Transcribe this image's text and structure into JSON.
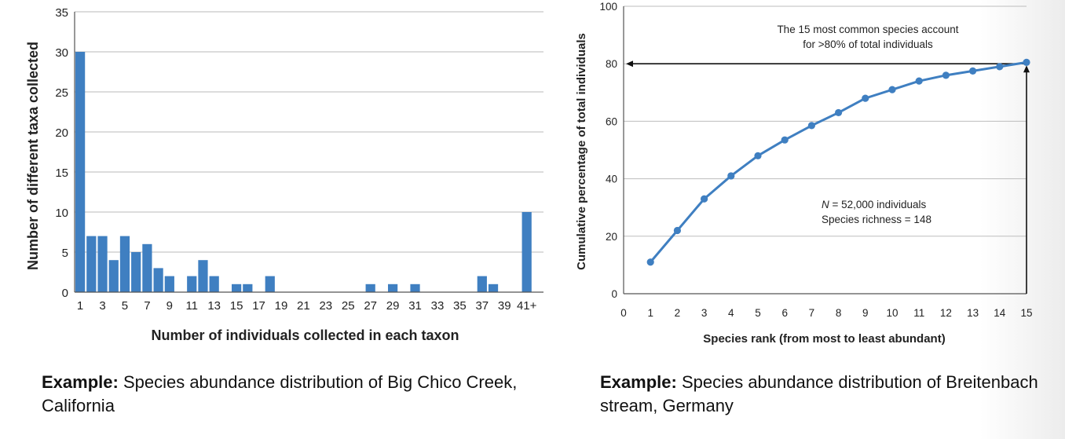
{
  "chart_data": [
    {
      "type": "bar",
      "title": "",
      "xlabel": "Number of individuals collected in each taxon",
      "ylabel": "Number of different taxa collected",
      "ylim": [
        0,
        35
      ],
      "yticks": [
        0,
        5,
        10,
        15,
        20,
        25,
        30,
        35
      ],
      "categories": [
        "1",
        "2",
        "3",
        "4",
        "5",
        "6",
        "7",
        "8",
        "9",
        "10",
        "11",
        "12",
        "13",
        "14",
        "15",
        "16",
        "17",
        "18",
        "19",
        "20",
        "21",
        "22",
        "23",
        "24",
        "25",
        "26",
        "27",
        "28",
        "29",
        "30",
        "31",
        "32",
        "33",
        "34",
        "35",
        "36",
        "37",
        "38",
        "39",
        "40",
        "41+"
      ],
      "x_tick_labels": [
        "1",
        "3",
        "5",
        "7",
        "9",
        "11",
        "13",
        "15",
        "17",
        "19",
        "21",
        "23",
        "25",
        "27",
        "29",
        "31",
        "33",
        "35",
        "37",
        "39",
        "41+"
      ],
      "values": [
        30,
        7,
        7,
        4,
        7,
        5,
        6,
        3,
        2,
        0,
        2,
        4,
        2,
        0,
        1,
        1,
        0,
        2,
        0,
        0,
        0,
        0,
        0,
        0,
        0,
        0,
        1,
        0,
        1,
        0,
        1,
        0,
        0,
        0,
        0,
        0,
        2,
        1,
        0,
        0,
        10
      ],
      "color": "#3f7fc1"
    },
    {
      "type": "line",
      "title": "",
      "xlabel": "Species rank (from most to least abundant)",
      "ylabel": "Cumulative percentage of total individuals",
      "xlim": [
        0,
        15
      ],
      "ylim": [
        0,
        100
      ],
      "xticks": [
        "0",
        "1",
        "2",
        "3",
        "4",
        "5",
        "6",
        "7",
        "8",
        "9",
        "10",
        "11",
        "12",
        "13",
        "14",
        "15"
      ],
      "yticks": [
        "0",
        "20",
        "40",
        "60",
        "80",
        "100"
      ],
      "x": [
        1,
        2,
        3,
        4,
        5,
        6,
        7,
        8,
        9,
        10,
        11,
        12,
        13,
        14,
        15
      ],
      "values": [
        11,
        22,
        33,
        41,
        48,
        53.5,
        58.5,
        63,
        68,
        71,
        74,
        76,
        77.5,
        79,
        80.5
      ],
      "color": "#3f7fc1",
      "annotation_top_line1": "The 15 most common species account",
      "annotation_top_line2": "for >80% of total individuals",
      "annotation_n_symbol": "N",
      "annotation_n_rest": " = 52,000 individuals",
      "annotation_richness": "Species richness = 148",
      "highlight_x": 15,
      "highlight_y": 80
    }
  ],
  "captions": {
    "left_bold": "Example:",
    "left_text": " Species abundance distribution of Big Chico Creek, California",
    "right_bold": "Example:",
    "right_text": " Species abundance distribution of Breitenbach stream, Germany"
  }
}
